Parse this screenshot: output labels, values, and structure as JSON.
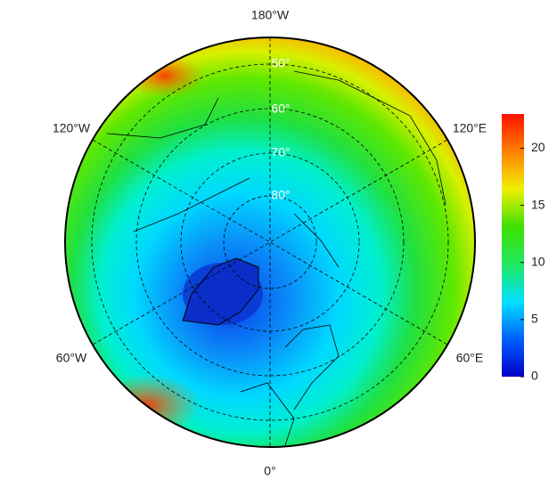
{
  "map": {
    "longitude_labels": [
      "180°W",
      "120°W",
      "120°E",
      "60°W",
      "60°E",
      "0°"
    ],
    "latitude_labels": [
      "50°",
      "60°",
      "70°",
      "80°"
    ]
  },
  "colorbar": {
    "range": [
      0,
      23
    ],
    "ticks": [
      0,
      5,
      10,
      15,
      20
    ],
    "colors": [
      "#0000c8",
      "#0060ff",
      "#00e0ff",
      "#20e860",
      "#40e000",
      "#f0f000",
      "#ff8000",
      "#ff1000"
    ]
  }
}
